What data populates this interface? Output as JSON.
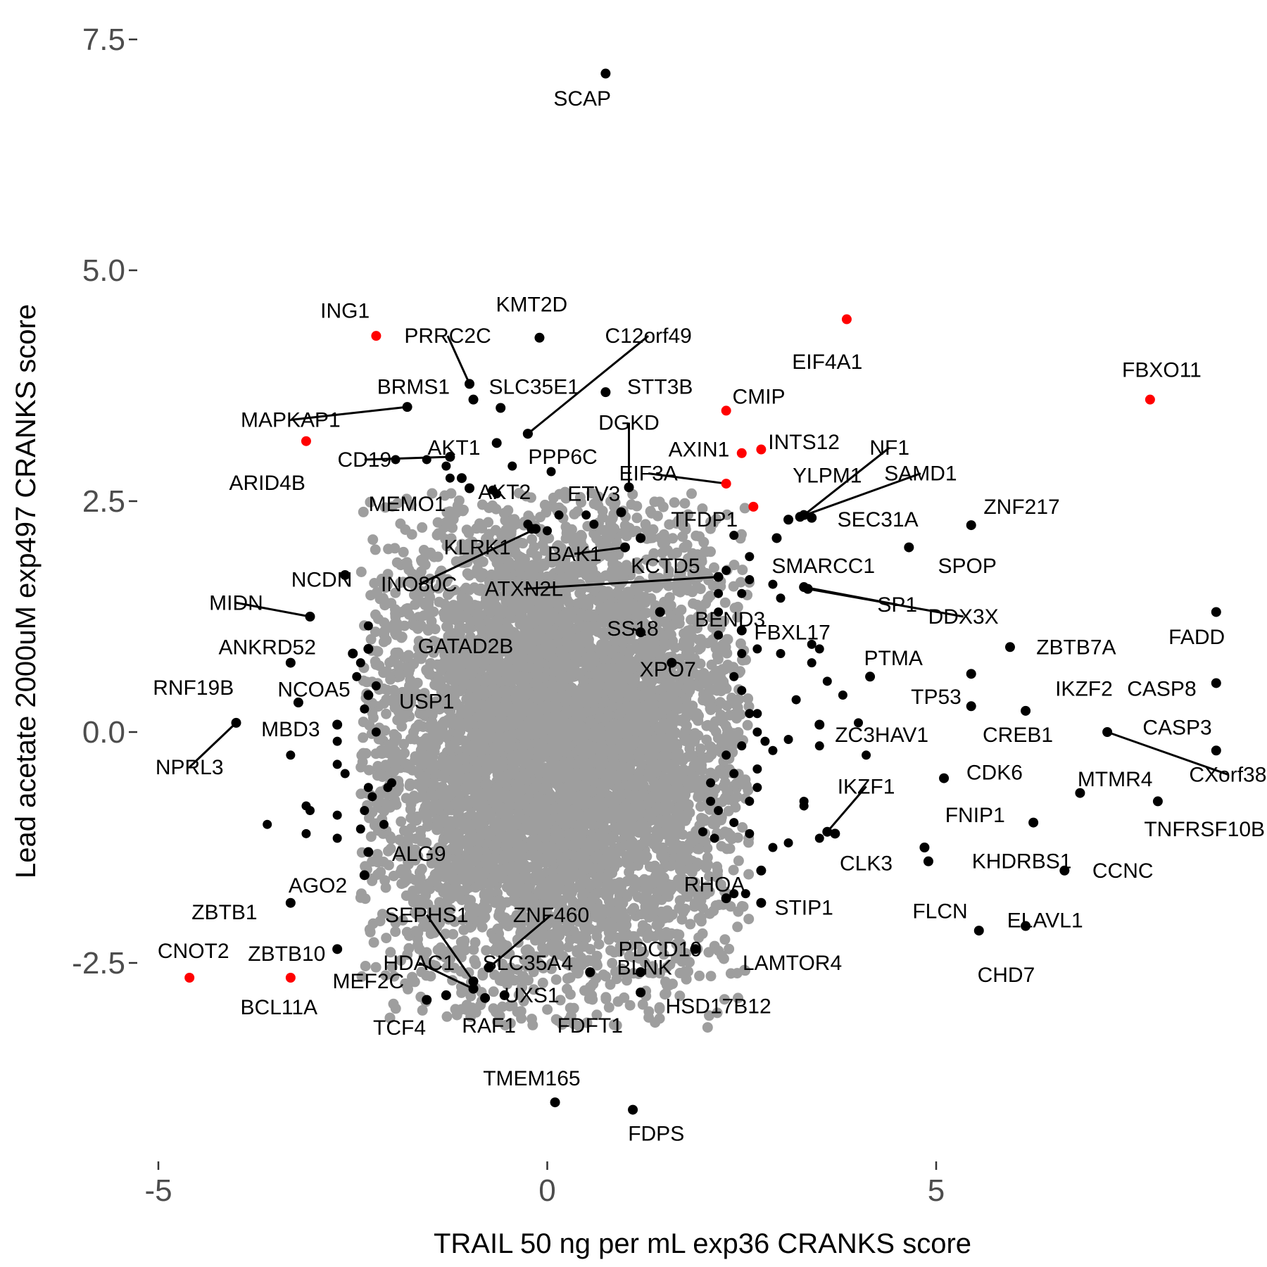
{
  "chart_data": {
    "type": "scatter",
    "xlabel": "TRAIL 50 ng per mL exp36 CRANKS score",
    "ylabel": "Lead acetate 2000uM exp497 CRANKS score",
    "xlim": [
      -5.2,
      9.1
    ],
    "ylim": [
      -5.5,
      7.8
    ],
    "x_ticks": [
      {
        "value": -5,
        "label": "-5"
      },
      {
        "value": 0,
        "label": "0"
      },
      {
        "value": 5,
        "label": "5"
      }
    ],
    "y_ticks": [
      {
        "value": -2.5,
        "label": "-2.5"
      },
      {
        "value": 0,
        "label": "0.0"
      },
      {
        "value": 2.5,
        "label": "2.5"
      },
      {
        "value": 5,
        "label": "5.0"
      },
      {
        "value": 7.5,
        "label": "7.5"
      }
    ],
    "grid": false,
    "colors": {
      "background_genes": "#9e9e9e",
      "labeled_genes": "#000000",
      "highlighted_genes": "#ff0000"
    },
    "background_cloud": {
      "center": [
        0.1,
        -0.15
      ],
      "sd": [
        1.25,
        1.35
      ],
      "count": 7000,
      "x_range": [
        -2.4,
        2.6
      ],
      "y_range": [
        -3.2,
        2.6
      ]
    },
    "labeled_points": [
      {
        "name": "SCAP",
        "x": 0.75,
        "y": 7.13,
        "color": "black",
        "lx": 0.45,
        "ly": 6.86
      },
      {
        "name": "ING1",
        "x": -2.2,
        "y": 4.29,
        "color": "red",
        "lx": -2.6,
        "ly": 4.56
      },
      {
        "name": "KMT2D",
        "x": -0.1,
        "y": 4.27,
        "color": "black",
        "lx": -0.2,
        "ly": 4.63
      },
      {
        "name": "PRRC2C",
        "x": -1.0,
        "y": 3.77,
        "color": "black",
        "lx": -1.28,
        "ly": 4.29,
        "leader": true
      },
      {
        "name": "C12orf49",
        "x": -0.25,
        "y": 3.23,
        "color": "black",
        "lx": 1.3,
        "ly": 4.29,
        "leader": true
      },
      {
        "name": "EIF4A1",
        "x": 3.85,
        "y": 4.47,
        "color": "red",
        "lx": 3.6,
        "ly": 4.01
      },
      {
        "name": "FBXO11",
        "x": 7.75,
        "y": 3.6,
        "color": "red",
        "lx": 7.9,
        "ly": 3.92
      },
      {
        "name": "BRMS1",
        "x": -0.95,
        "y": 3.6,
        "color": "black",
        "lx": -1.72,
        "ly": 3.74
      },
      {
        "name": "SLC35E1",
        "x": -0.6,
        "y": 3.51,
        "color": "black",
        "lx": -0.17,
        "ly": 3.74
      },
      {
        "name": "STT3B",
        "x": 0.75,
        "y": 3.68,
        "color": "black",
        "lx": 1.45,
        "ly": 3.74
      },
      {
        "name": "CMIP",
        "x": 2.3,
        "y": 3.48,
        "color": "red",
        "lx": 2.72,
        "ly": 3.63
      },
      {
        "name": "MAPKAP1",
        "x": -1.8,
        "y": 3.52,
        "color": "black",
        "lx": -3.3,
        "ly": 3.38,
        "leader": true
      },
      {
        "name": "DGKD",
        "x": 1.05,
        "y": 2.65,
        "color": "black",
        "lx": 1.05,
        "ly": 3.35,
        "leader": true
      },
      {
        "name": "AKT1",
        "x": -0.65,
        "y": 3.13,
        "color": "black",
        "lx": -1.2,
        "ly": 3.08
      },
      {
        "name": "INTS12",
        "x": 2.75,
        "y": 3.06,
        "color": "red",
        "lx": 3.3,
        "ly": 3.14
      },
      {
        "name": "AXIN1",
        "x": 2.5,
        "y": 3.02,
        "color": "red",
        "lx": 1.95,
        "ly": 3.06
      },
      {
        "name": "NF1",
        "x": 3.3,
        "y": 2.35,
        "color": "black",
        "lx": 4.4,
        "ly": 3.08,
        "leader": true
      },
      {
        "name": "ARID4B",
        "x": -3.1,
        "y": 3.15,
        "color": "red",
        "lx": -3.6,
        "ly": 2.7
      },
      {
        "name": "CD19",
        "x": -1.25,
        "y": 2.98,
        "color": "black",
        "lx": -2.35,
        "ly": 2.95,
        "leader": true
      },
      {
        "name": "PPP6C",
        "x": -0.25,
        "y": 3.23,
        "color": "black",
        "lx": 0.2,
        "ly": 2.98
      },
      {
        "name": "EIF3A",
        "x": 2.3,
        "y": 2.69,
        "color": "red",
        "lx": 1.3,
        "ly": 2.8,
        "leader": true
      },
      {
        "name": "YLPM1",
        "x": 3.1,
        "y": 2.3,
        "color": "black",
        "lx": 3.6,
        "ly": 2.78
      },
      {
        "name": "SAMD1",
        "x": 3.25,
        "y": 2.33,
        "color": "black",
        "lx": 4.8,
        "ly": 2.8,
        "leader": true
      },
      {
        "name": "MEMO1",
        "x": -1.1,
        "y": 2.75,
        "color": "black",
        "lx": -1.8,
        "ly": 2.47
      },
      {
        "name": "AKT2",
        "x": -1.0,
        "y": 2.64,
        "color": "black",
        "lx": -0.55,
        "ly": 2.6
      },
      {
        "name": "ETV3",
        "x": 0.95,
        "y": 2.38,
        "color": "black",
        "lx": 0.6,
        "ly": 2.58
      },
      {
        "name": "TFDP1",
        "x": 2.65,
        "y": 2.44,
        "color": "red",
        "lx": 2.02,
        "ly": 2.3
      },
      {
        "name": "SEC31A",
        "x": 3.4,
        "y": 2.32,
        "color": "black",
        "lx": 4.25,
        "ly": 2.3
      },
      {
        "name": "ZNF217",
        "x": 5.45,
        "y": 2.24,
        "color": "black",
        "lx": 6.1,
        "ly": 2.44
      },
      {
        "name": "KLRK1",
        "x": -0.2,
        "y": 2.2,
        "color": "black",
        "lx": -0.9,
        "ly": 2.0
      },
      {
        "name": "BAK1",
        "x": 1.0,
        "y": 2.0,
        "color": "black",
        "lx": 0.35,
        "ly": 1.93,
        "leader": true
      },
      {
        "name": "INO80C",
        "x": -0.15,
        "y": 2.2,
        "color": "black",
        "lx": -1.65,
        "ly": 1.6,
        "leader": true
      },
      {
        "name": "KCTD5",
        "x": 1.2,
        "y": 2.1,
        "color": "black",
        "lx": 1.52,
        "ly": 1.8
      },
      {
        "name": "SMARCC1",
        "x": 2.95,
        "y": 2.1,
        "color": "black",
        "lx": 3.55,
        "ly": 1.8
      },
      {
        "name": "SPOP",
        "x": 4.65,
        "y": 2.0,
        "color": "black",
        "lx": 5.4,
        "ly": 1.8
      },
      {
        "name": "NCDN",
        "x": -2.6,
        "y": 1.7,
        "color": "black",
        "lx": -2.9,
        "ly": 1.65
      },
      {
        "name": "ATXN2L",
        "x": 2.2,
        "y": 1.68,
        "color": "black",
        "lx": -0.3,
        "ly": 1.55,
        "leader": true
      },
      {
        "name": "SP1",
        "x": 3.3,
        "y": 1.57,
        "color": "black",
        "lx": 4.5,
        "ly": 1.38,
        "leader": true
      },
      {
        "name": "DDX3X",
        "x": 3.35,
        "y": 1.55,
        "color": "black",
        "lx": 5.35,
        "ly": 1.25,
        "leader": true
      },
      {
        "name": "MIDN",
        "x": -3.05,
        "y": 1.25,
        "color": "black",
        "lx": -4.0,
        "ly": 1.4,
        "leader": true
      },
      {
        "name": "BEND3",
        "x": 1.45,
        "y": 1.3,
        "color": "black",
        "lx": 2.35,
        "ly": 1.22
      },
      {
        "name": "SS18",
        "x": 1.2,
        "y": 1.08,
        "color": "black",
        "lx": 1.1,
        "ly": 1.12,
        "leader": true
      },
      {
        "name": "FBXL17",
        "x": 2.5,
        "y": 1.1,
        "color": "black",
        "lx": 3.15,
        "ly": 1.08
      },
      {
        "name": "ANKRD52",
        "x": -2.5,
        "y": 0.85,
        "color": "black",
        "lx": -3.6,
        "ly": 0.92
      },
      {
        "name": "GATAD2B",
        "x": -2.3,
        "y": 0.9,
        "color": "black",
        "lx": -1.05,
        "ly": 0.93
      },
      {
        "name": "ZBTB7A",
        "x": 5.95,
        "y": 0.92,
        "color": "black",
        "lx": 6.8,
        "ly": 0.92
      },
      {
        "name": "FADD",
        "x": 8.6,
        "y": 1.3,
        "color": "black",
        "lx": 8.35,
        "ly": 1.03
      },
      {
        "name": "PTMA",
        "x": 4.15,
        "y": 0.6,
        "color": "black",
        "lx": 4.45,
        "ly": 0.8
      },
      {
        "name": "XPO7",
        "x": 1.6,
        "y": 0.75,
        "color": "black",
        "lx": 1.55,
        "ly": 0.68
      },
      {
        "name": "RNF19B",
        "x": -3.3,
        "y": 0.75,
        "color": "black",
        "lx": -4.55,
        "ly": 0.48
      },
      {
        "name": "NCOA5",
        "x": -3.2,
        "y": 0.32,
        "color": "black",
        "lx": -3.0,
        "ly": 0.46
      },
      {
        "name": "IKZF2",
        "x": 6.15,
        "y": 0.23,
        "color": "black",
        "lx": 6.9,
        "ly": 0.47
      },
      {
        "name": "CASP8",
        "x": 8.6,
        "y": 0.53,
        "color": "black",
        "lx": 7.9,
        "ly": 0.47
      },
      {
        "name": "TP53",
        "x": 5.45,
        "y": 0.63,
        "color": "black",
        "lx": 5.0,
        "ly": 0.38
      },
      {
        "name": "USP1",
        "x": -2.3,
        "y": 0.4,
        "color": "black",
        "lx": -1.55,
        "ly": 0.33
      },
      {
        "name": "CREB1",
        "x": 5.45,
        "y": 0.28,
        "color": "black",
        "lx": 6.05,
        "ly": -0.03
      },
      {
        "name": "MBD3",
        "x": -2.7,
        "y": 0.08,
        "color": "black",
        "lx": -3.3,
        "ly": 0.03
      },
      {
        "name": "CASP3",
        "x": 8.6,
        "y": -0.2,
        "color": "black",
        "lx": 8.1,
        "ly": 0.05
      },
      {
        "name": "ZC3HAV1",
        "x": 3.5,
        "y": 0.08,
        "color": "black",
        "lx": 4.3,
        "ly": -0.03
      },
      {
        "name": "NPRL3",
        "x": -4.0,
        "y": 0.1,
        "color": "black",
        "lx": -4.6,
        "ly": -0.38,
        "leader": true
      },
      {
        "name": "CXorf38",
        "x": 7.2,
        "y": 0.0,
        "color": "black",
        "lx": 8.75,
        "ly": -0.46,
        "leader": true
      },
      {
        "name": "CDK6",
        "x": 5.1,
        "y": -0.5,
        "color": "black",
        "lx": 5.75,
        "ly": -0.44
      },
      {
        "name": "MTMR4",
        "x": 6.85,
        "y": -0.66,
        "color": "black",
        "lx": 7.3,
        "ly": -0.51
      },
      {
        "name": "IKZF1",
        "x": 3.6,
        "y": -1.08,
        "color": "black",
        "lx": 4.1,
        "ly": -0.59,
        "leader": true
      },
      {
        "name": "FNIP1",
        "x": 6.25,
        "y": -0.98,
        "color": "black",
        "lx": 5.5,
        "ly": -0.9
      },
      {
        "name": "TNFRSF10B",
        "x": 7.85,
        "y": -0.75,
        "color": "black",
        "lx": 8.45,
        "ly": -1.05
      },
      {
        "name": "CLK3",
        "x": 3.7,
        "y": -1.1,
        "color": "black",
        "lx": 4.1,
        "ly": -1.42
      },
      {
        "name": "KHDRBS1",
        "x": 4.85,
        "y": -1.25,
        "color": "black",
        "lx": 6.1,
        "ly": -1.4
      },
      {
        "name": "CCNC",
        "x": 6.65,
        "y": -1.5,
        "color": "black",
        "lx": 7.4,
        "ly": -1.5
      },
      {
        "name": "ALG9",
        "x": -2.3,
        "y": -1.3,
        "color": "black",
        "lx": -1.65,
        "ly": -1.32
      },
      {
        "name": "AGO2",
        "x": -2.35,
        "y": -1.55,
        "color": "black",
        "lx": -2.95,
        "ly": -1.66
      },
      {
        "name": "RHOA",
        "x": 2.75,
        "y": -1.5,
        "color": "black",
        "lx": 2.15,
        "ly": -1.65
      },
      {
        "name": "FLCN",
        "x": 4.9,
        "y": -1.4,
        "color": "black",
        "lx": 5.05,
        "ly": -1.94
      },
      {
        "name": "ELAVL1",
        "x": 6.15,
        "y": -2.1,
        "color": "black",
        "lx": 6.4,
        "ly": -2.04
      },
      {
        "name": "ZBTB1",
        "x": -3.3,
        "y": -1.85,
        "color": "black",
        "lx": -4.15,
        "ly": -1.95
      },
      {
        "name": "SEPHS1",
        "x": -0.95,
        "y": -2.7,
        "color": "black",
        "lx": -1.55,
        "ly": -1.98,
        "leader": true
      },
      {
        "name": "ZNF460",
        "x": -0.75,
        "y": -2.55,
        "color": "black",
        "lx": 0.05,
        "ly": -1.98,
        "leader": true
      },
      {
        "name": "STIP1",
        "x": 2.75,
        "y": -1.85,
        "color": "black",
        "lx": 3.3,
        "ly": -1.9
      },
      {
        "name": "PDCD10",
        "x": 1.9,
        "y": -2.35,
        "color": "black",
        "lx": 1.45,
        "ly": -2.35
      },
      {
        "name": "CHD7",
        "x": 5.55,
        "y": -2.15,
        "color": "black",
        "lx": 5.9,
        "ly": -2.63
      },
      {
        "name": "ZBTB10",
        "x": -2.7,
        "y": -2.35,
        "color": "black",
        "lx": -3.35,
        "ly": -2.4
      },
      {
        "name": "HDAC1",
        "x": -0.95,
        "y": -2.78,
        "color": "black",
        "lx": -1.65,
        "ly": -2.5,
        "leader": true
      },
      {
        "name": "SLC35A4",
        "x": -0.75,
        "y": -2.55,
        "color": "black",
        "lx": -0.25,
        "ly": -2.5
      },
      {
        "name": "LAMTOR4",
        "x": 2.3,
        "y": -1.8,
        "color": "black",
        "lx": 3.15,
        "ly": -2.5
      },
      {
        "name": "CNOT2",
        "x": -4.6,
        "y": -2.66,
        "color": "red",
        "lx": -4.55,
        "ly": -2.37
      },
      {
        "name": "BCL11A",
        "x": -3.3,
        "y": -2.66,
        "color": "red",
        "lx": -3.45,
        "ly": -2.98
      },
      {
        "name": "MEF2C",
        "x": -1.3,
        "y": -2.85,
        "color": "black",
        "lx": -2.3,
        "ly": -2.7
      },
      {
        "name": "BLNK",
        "x": 1.2,
        "y": -2.6,
        "color": "black",
        "lx": 1.25,
        "ly": -2.55
      },
      {
        "name": "UXS1",
        "x": -0.55,
        "y": -2.85,
        "color": "black",
        "lx": -0.2,
        "ly": -2.85
      },
      {
        "name": "HSD17B12",
        "x": 1.2,
        "y": -2.82,
        "color": "black",
        "lx": 2.2,
        "ly": -2.97
      },
      {
        "name": "TCF4",
        "x": -1.55,
        "y": -2.9,
        "color": "black",
        "lx": -1.9,
        "ly": -3.2
      },
      {
        "name": "RAF1",
        "x": -0.8,
        "y": -2.88,
        "color": "black",
        "lx": -0.75,
        "ly": -3.18
      },
      {
        "name": "FDFT1",
        "x": 0.55,
        "y": -2.6,
        "color": "black",
        "lx": 0.55,
        "ly": -3.18
      },
      {
        "name": "TMEM165",
        "x": 0.1,
        "y": -4.01,
        "color": "black",
        "lx": -0.2,
        "ly": -3.75
      },
      {
        "name": "FDPS",
        "x": 1.1,
        "y": -4.09,
        "color": "black",
        "lx": 1.4,
        "ly": -4.35
      }
    ],
    "extra_black_points": [
      [
        -1.95,
        2.95
      ],
      [
        -1.55,
        2.95
      ],
      [
        -1.3,
        2.88
      ],
      [
        -1.25,
        2.75
      ],
      [
        -0.7,
        2.62
      ],
      [
        -0.65,
        2.58
      ],
      [
        -0.45,
        2.88
      ],
      [
        -0.25,
        2.25
      ],
      [
        0.05,
        2.82
      ],
      [
        0.0,
        2.18
      ],
      [
        0.5,
        2.35
      ],
      [
        0.6,
        2.25
      ],
      [
        0.15,
        2.35
      ],
      [
        2.4,
        2.13
      ],
      [
        2.6,
        1.9
      ],
      [
        2.3,
        1.75
      ],
      [
        2.6,
        1.65
      ],
      [
        2.2,
        1.5
      ],
      [
        2.5,
        1.5
      ],
      [
        2.9,
        1.6
      ],
      [
        3.0,
        1.45
      ],
      [
        2.2,
        1.3
      ],
      [
        2.2,
        1.05
      ],
      [
        2.5,
        0.85
      ],
      [
        2.7,
        0.9
      ],
      [
        3.0,
        0.85
      ],
      [
        3.4,
        0.95
      ],
      [
        3.5,
        0.9
      ],
      [
        3.4,
        0.75
      ],
      [
        3.6,
        0.55
      ],
      [
        3.2,
        0.35
      ],
      [
        3.8,
        0.4
      ],
      [
        4.0,
        0.1
      ],
      [
        4.1,
        -0.25
      ],
      [
        2.4,
        0.6
      ],
      [
        2.5,
        0.45
      ],
      [
        2.6,
        0.2
      ],
      [
        2.7,
        0.2
      ],
      [
        2.7,
        0.0
      ],
      [
        2.8,
        -0.1
      ],
      [
        2.9,
        -0.2
      ],
      [
        3.1,
        -0.08
      ],
      [
        3.5,
        -0.15
      ],
      [
        2.5,
        -0.15
      ],
      [
        2.3,
        -0.25
      ],
      [
        2.4,
        -0.45
      ],
      [
        2.1,
        -0.55
      ],
      [
        2.1,
        -0.75
      ],
      [
        2.2,
        -0.85
      ],
      [
        2.0,
        -1.08
      ],
      [
        2.15,
        -1.15
      ],
      [
        2.4,
        -0.98
      ],
      [
        2.6,
        -0.75
      ],
      [
        2.7,
        -0.6
      ],
      [
        2.7,
        -0.4
      ],
      [
        3.3,
        -0.75
      ],
      [
        3.3,
        -0.8
      ],
      [
        2.6,
        -1.1
      ],
      [
        2.9,
        -1.25
      ],
      [
        3.1,
        -1.2
      ],
      [
        3.5,
        -1.15
      ],
      [
        2.4,
        -1.75
      ],
      [
        2.55,
        -1.75
      ],
      [
        -2.3,
        1.15
      ],
      [
        -2.2,
        0.5
      ],
      [
        -2.35,
        0.25
      ],
      [
        -2.2,
        0.0
      ],
      [
        -2.7,
        -0.35
      ],
      [
        -2.6,
        -0.45
      ],
      [
        -2.3,
        -0.6
      ],
      [
        -2.25,
        -0.7
      ],
      [
        -2.35,
        -0.85
      ],
      [
        -2.4,
        -1.05
      ],
      [
        -2.7,
        -0.9
      ],
      [
        -2.7,
        -1.15
      ],
      [
        -3.1,
        -0.8
      ],
      [
        -3.05,
        -0.85
      ],
      [
        -3.1,
        -1.1
      ],
      [
        -3.6,
        -1.0
      ],
      [
        -2.0,
        -0.55
      ],
      [
        -2.05,
        -0.6
      ],
      [
        -2.1,
        -1.0
      ],
      [
        -2.4,
        0.75
      ],
      [
        -2.45,
        0.6
      ],
      [
        -2.7,
        -0.1
      ],
      [
        -3.3,
        -0.25
      ]
    ]
  }
}
